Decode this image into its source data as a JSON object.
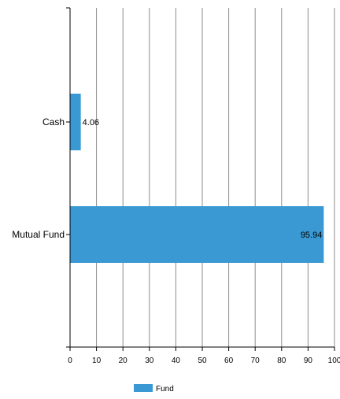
{
  "chart_data": {
    "type": "bar",
    "orientation": "horizontal",
    "categories": [
      "Cash",
      "Mutual Fund"
    ],
    "series": [
      {
        "name": "Fund",
        "values": [
          4.06,
          95.94
        ],
        "color": "#3a99d3"
      }
    ],
    "data_labels": [
      "4.06",
      "95.94"
    ],
    "xlim": [
      0,
      100
    ],
    "x_ticks": [
      "0",
      "10",
      "20",
      "30",
      "40",
      "50",
      "60",
      "70",
      "80",
      "90",
      "100"
    ],
    "grid": true,
    "legend_position": "bottom"
  }
}
